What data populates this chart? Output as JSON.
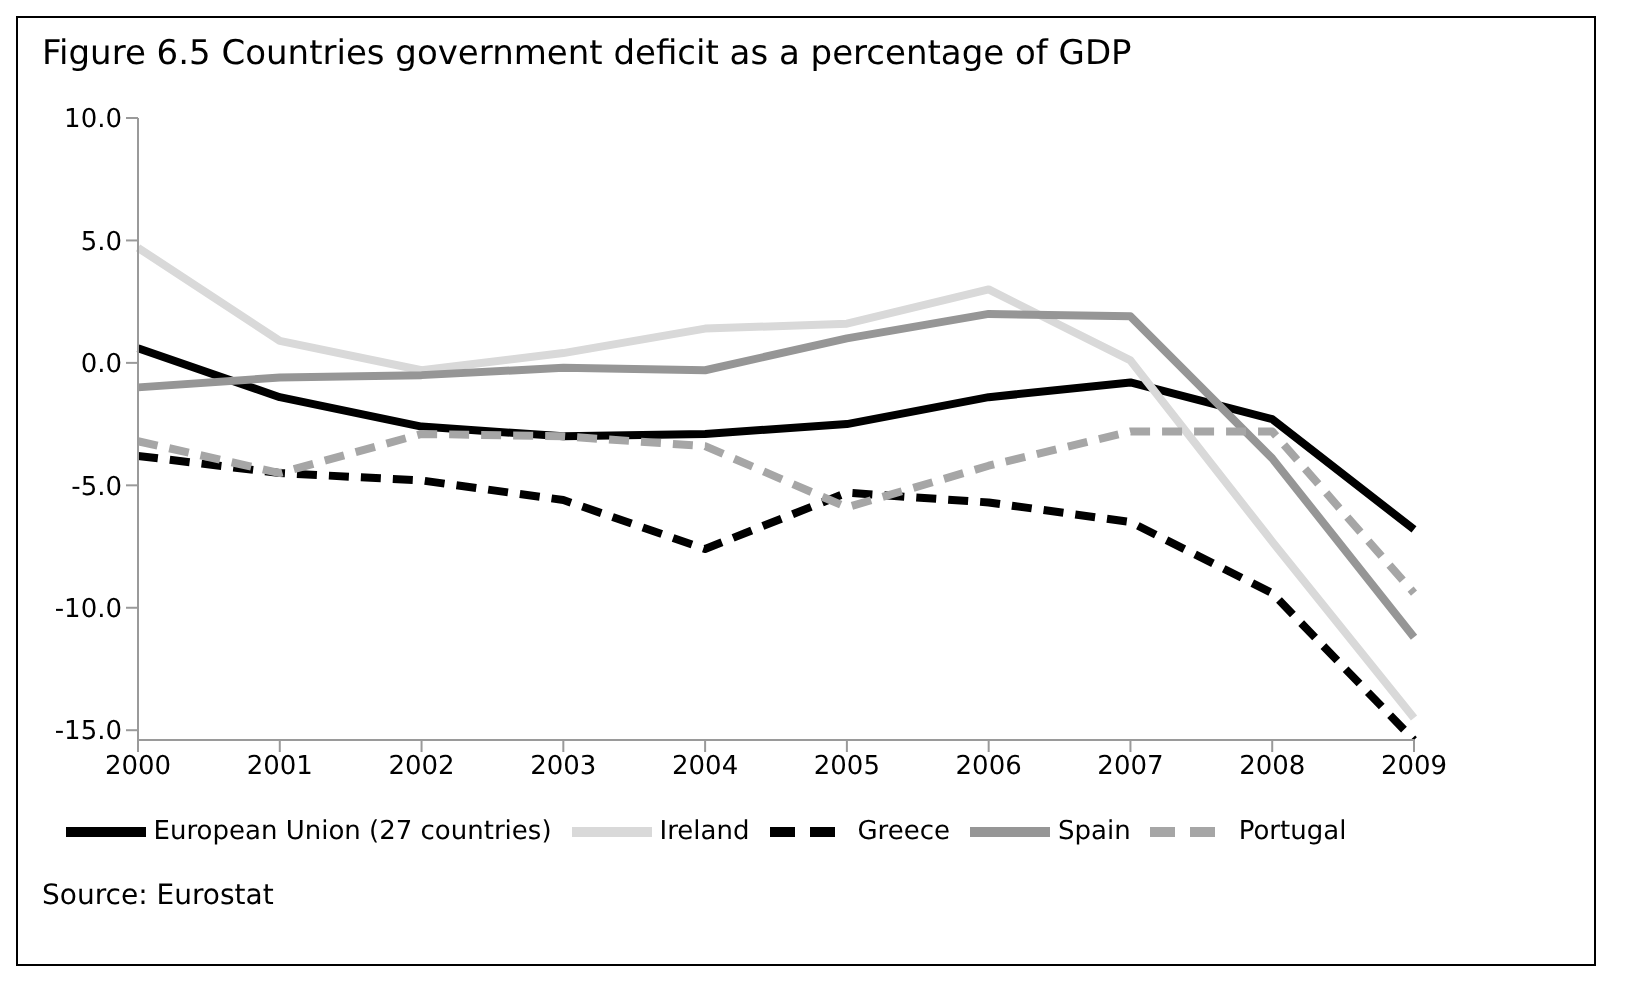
{
  "chart_data": {
    "type": "line",
    "title": "Figure 6.5  Countries government deficit as a percentage of GDP",
    "categories": [
      "2000",
      "2001",
      "2002",
      "2003",
      "2004",
      "2005",
      "2006",
      "2007",
      "2008",
      "2009"
    ],
    "series": [
      {
        "name": "European Union (27 countries)",
        "color": "#000000",
        "line_style": "solid",
        "values": [
          0.6,
          -1.4,
          -2.6,
          -3.0,
          -2.9,
          -2.5,
          -1.4,
          -0.8,
          -2.3,
          -6.8
        ]
      },
      {
        "name": "Ireland",
        "color": "#d9d9d9",
        "line_style": "solid",
        "values": [
          4.7,
          0.9,
          -0.3,
          0.4,
          1.4,
          1.6,
          3.0,
          0.1,
          -7.3,
          -14.5
        ]
      },
      {
        "name": "Greece",
        "color": "#000000",
        "line_style": "dashed",
        "values": [
          -3.8,
          -4.5,
          -4.8,
          -5.6,
          -7.6,
          -5.3,
          -5.7,
          -6.5,
          -9.4,
          -15.4
        ]
      },
      {
        "name": "Spain",
        "color": "#969696",
        "line_style": "solid",
        "values": [
          -1.0,
          -0.6,
          -0.5,
          -0.2,
          -0.3,
          1.0,
          2.0,
          1.9,
          -3.9,
          -11.2
        ]
      },
      {
        "name": "Portugal",
        "color": "#a6a6a6",
        "line_style": "dashed",
        "values": [
          -3.2,
          -4.5,
          -2.9,
          -3.0,
          -3.4,
          -5.9,
          -4.2,
          -2.8,
          -2.8,
          -9.4
        ]
      }
    ],
    "ylim": [
      -15.4,
      10
    ],
    "yticks": [
      {
        "value": -15,
        "label": "-15.0"
      },
      {
        "value": -10,
        "label": "-10.0"
      },
      {
        "value": -5,
        "label": "-5.0"
      },
      {
        "value": 0,
        "label": "0.0"
      },
      {
        "value": 5,
        "label": "5.0"
      },
      {
        "value": 10,
        "label": "10.0"
      }
    ],
    "grid": false,
    "legend": "bottom",
    "marker": "none",
    "annotations": [
      "Source: Eurostat"
    ]
  }
}
